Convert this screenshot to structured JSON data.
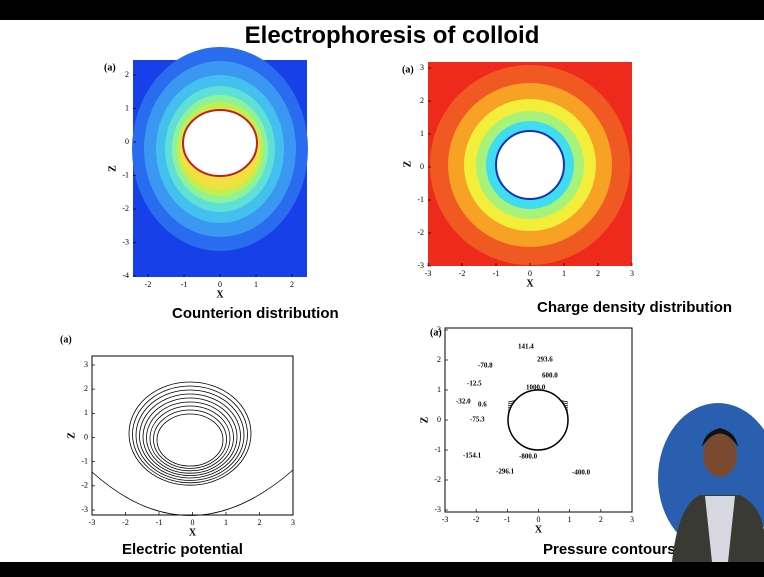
{
  "title": "Electrophoresis of colloid",
  "panels": [
    {
      "label": "(a)",
      "caption": "Counterion distribution",
      "x_label": "X",
      "y_label": "Z",
      "x_ticks": [
        -2,
        -1,
        0,
        1,
        2
      ],
      "y_ticks": [
        2,
        1,
        0,
        -1,
        -2,
        -3,
        -4
      ],
      "contour_labels": []
    },
    {
      "label": "(a)",
      "caption": "Charge density distribution",
      "x_label": "X",
      "y_label": "Z",
      "x_ticks": [
        -3,
        -2,
        -1,
        0,
        1,
        2,
        3
      ],
      "y_ticks": [
        3,
        2,
        1,
        0,
        -1,
        -2,
        -3
      ],
      "contour_labels": []
    },
    {
      "label": "(a)",
      "caption": "Electric potential",
      "x_label": "X",
      "y_label": "Z",
      "x_ticks": [
        -3,
        -2,
        -1,
        0,
        1,
        2,
        3
      ],
      "y_ticks": [
        3,
        2,
        1,
        0,
        -1,
        -2,
        -3
      ],
      "contour_labels": []
    },
    {
      "label": "(a)",
      "caption": "Pressure contours",
      "x_label": "X",
      "y_label": "Z",
      "x_ticks": [
        -3,
        -2,
        -1,
        0,
        1,
        2,
        3
      ],
      "y_ticks": [
        3,
        2,
        1,
        0,
        -1,
        -2,
        -3
      ],
      "contour_labels": [
        "141.4",
        "293.6",
        "600.0",
        "1000.0",
        "-70.8",
        "-12.5",
        "-32.0",
        "0.6",
        "-75.3",
        "-154.1",
        "-296.1",
        "-800.0",
        "-400.0"
      ]
    }
  ]
}
